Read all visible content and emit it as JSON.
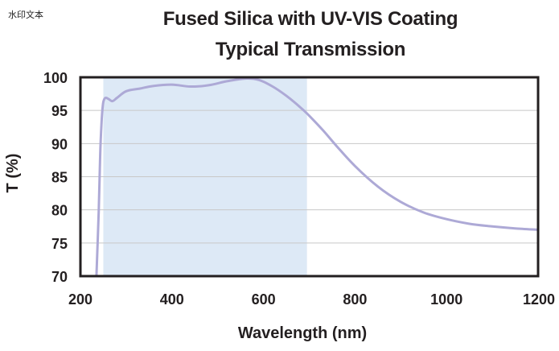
{
  "watermark": "水印文本",
  "chart_data": {
    "type": "line",
    "title": "Fused Silica with UV-VIS Coating",
    "subtitle": "Typical Transmission",
    "xlabel": "Wavelength (nm)",
    "ylabel": "T (%)",
    "xlim": [
      200,
      1200
    ],
    "ylim": [
      70,
      100
    ],
    "xticks": [
      200,
      400,
      600,
      800,
      1000,
      1200
    ],
    "yticks": [
      70,
      75,
      80,
      85,
      90,
      95,
      100
    ],
    "grid": "horizontal",
    "shaded_band": {
      "x_start": 250,
      "x_end": 695,
      "color": "#dde9f6"
    },
    "series": [
      {
        "color": "#ada9d6",
        "x": [
          235,
          240,
          243,
          246,
          249,
          252,
          256,
          262,
          270,
          280,
          300,
          330,
          360,
          400,
          440,
          480,
          520,
          560,
          590,
          620,
          650,
          680,
          700,
          730,
          760,
          800,
          850,
          900,
          950,
          1000,
          1050,
          1100,
          1150,
          1200
        ],
        "y": [
          70,
          80,
          88,
          93,
          95.8,
          96.7,
          96.9,
          96.7,
          96.4,
          96.9,
          97.9,
          98.3,
          98.7,
          98.9,
          98.6,
          98.8,
          99.4,
          99.8,
          99.6,
          98.6,
          97.2,
          95.5,
          94.2,
          92.0,
          89.6,
          86.6,
          83.5,
          81.2,
          79.6,
          78.6,
          77.9,
          77.5,
          77.2,
          77.0
        ]
      }
    ]
  }
}
